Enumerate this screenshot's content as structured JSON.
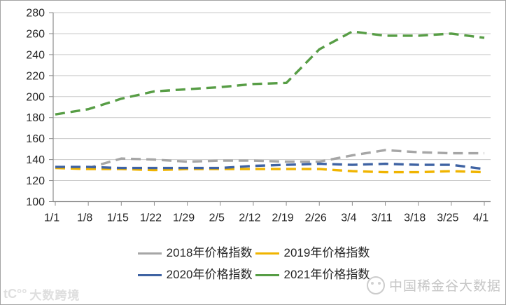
{
  "chart_data": {
    "type": "line",
    "title": "",
    "xlabel": "",
    "ylabel": "",
    "x_labels": [
      "1/1",
      "1/8",
      "1/15",
      "1/22",
      "1/29",
      "2/5",
      "2/12",
      "2/19",
      "2/26",
      "3/4",
      "3/11",
      "3/18",
      "3/25",
      "4/1"
    ],
    "y_axis": {
      "min": 100,
      "max": 280,
      "step": 20
    },
    "grid": true,
    "line_style": "dashed",
    "legend_position": "bottom",
    "series": [
      {
        "name": "2018年价格指数",
        "color": "#a6a6a6",
        "values": [
          133,
          132,
          141,
          140,
          138,
          139,
          139,
          138,
          138,
          144,
          149,
          147,
          146,
          146
        ]
      },
      {
        "name": "2019年价格指数",
        "color": "#f0b400",
        "values": [
          132,
          131,
          131,
          130,
          131,
          131,
          131,
          131,
          131,
          129,
          128,
          128,
          129,
          128
        ]
      },
      {
        "name": "2020年价格指数",
        "color": "#3f63a3",
        "values": [
          133,
          133,
          132,
          132,
          132,
          132,
          134,
          135,
          136,
          135,
          136,
          135,
          135,
          131
        ]
      },
      {
        "name": "2021年价格指数",
        "color": "#579d45",
        "values": [
          183,
          188,
          198,
          205,
          207,
          209,
          212,
          213,
          245,
          262,
          258,
          258,
          260,
          256
        ]
      }
    ]
  },
  "style": {
    "grid_color": "#c9c9c9",
    "axis_color": "#8c8c8c",
    "axis_text_color": "#262626",
    "background": "#ffffff"
  },
  "watermarks": {
    "bottom_right": "中国稀金谷大数据",
    "bottom_left": "大数跨境",
    "bottom_left_mark": "tC°°"
  }
}
